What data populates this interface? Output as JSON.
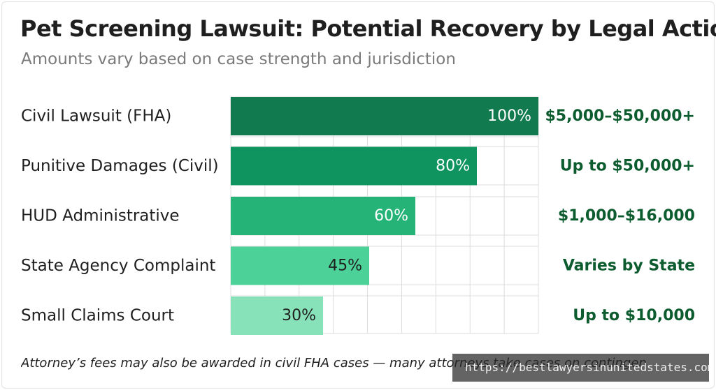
{
  "title": "Pet Screening Lawsuit: Potential Recovery by Legal Action",
  "subtitle": "Amounts vary based on case strength and jurisdiction",
  "footnote": "Attorney’s fees may also be awarded in civil FHA cases — many attorneys take cases on contingen",
  "watermark": "https://bestlawyersinunitedstates.com/",
  "colors": {
    "bars": [
      "#117a4e",
      "#0f9460",
      "#25b377",
      "#4cd198",
      "#88e2b9"
    ],
    "bar_label_light": "#ffffff",
    "bar_label_dark": "#1f1f1f",
    "amount": "#0d5c2f",
    "grid": "#dcdcdc"
  },
  "chart_data": {
    "type": "bar",
    "orientation": "horizontal",
    "categories": [
      "Civil Lawsuit (FHA)",
      "Punitive Damages (Civil)",
      "HUD Administrative",
      "State Agency Complaint",
      "Small Claims Court"
    ],
    "values": [
      100,
      80,
      60,
      45,
      30
    ],
    "value_labels": [
      "100%",
      "80%",
      "60%",
      "45%",
      "30%"
    ],
    "amount_labels": [
      "$5,000–$50,000+",
      "Up to $50,000+",
      "$1,000–$16,000",
      "Varies by State",
      "Up to $10,000"
    ],
    "xlim": [
      0,
      100
    ],
    "grid": true,
    "legend": "none"
  }
}
